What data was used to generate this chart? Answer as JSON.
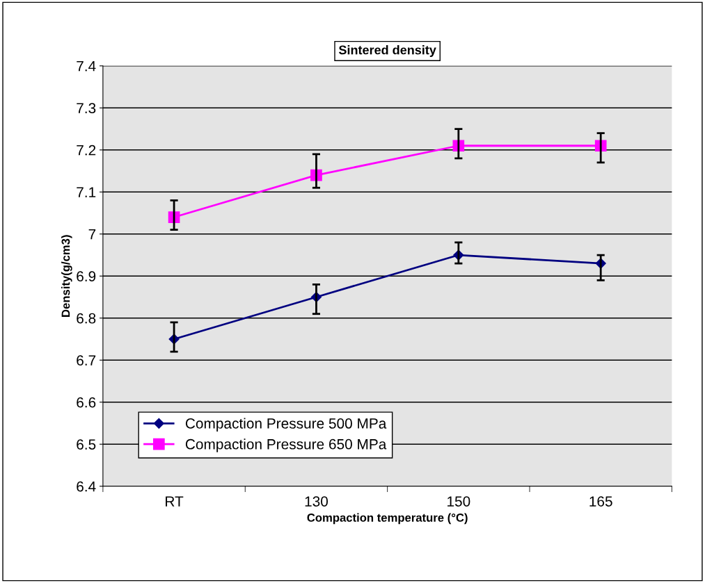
{
  "chart_data": {
    "type": "line",
    "title": "Sintered density",
    "xlabel": "Compaction temperature (°C)",
    "ylabel": "Density(g/cm3)",
    "categories": [
      "RT",
      "130",
      "150",
      "165"
    ],
    "series": [
      {
        "name": "Compaction Pressure 500 MPa",
        "color": "#000080",
        "marker": "diamond",
        "values": [
          6.75,
          6.85,
          6.95,
          6.93
        ],
        "errors": [
          [
            6.72,
            6.79
          ],
          [
            6.81,
            6.88
          ],
          [
            6.93,
            6.98
          ],
          [
            6.89,
            6.95
          ]
        ]
      },
      {
        "name": "Compaction Pressure 650 MPa",
        "color": "#ff00ff",
        "marker": "square",
        "values": [
          7.04,
          7.14,
          7.21,
          7.21
        ],
        "errors": [
          [
            7.01,
            7.08
          ],
          [
            7.11,
            7.19
          ],
          [
            7.18,
            7.25
          ],
          [
            7.17,
            7.24
          ]
        ]
      }
    ],
    "ylim": [
      6.4,
      7.4
    ],
    "yticks": [
      6.4,
      6.5,
      6.6,
      6.7,
      6.8,
      6.9,
      7,
      7.1,
      7.2,
      7.3,
      7.4
    ],
    "grid": "y",
    "legend": "bottom left",
    "line_style": "solid"
  }
}
